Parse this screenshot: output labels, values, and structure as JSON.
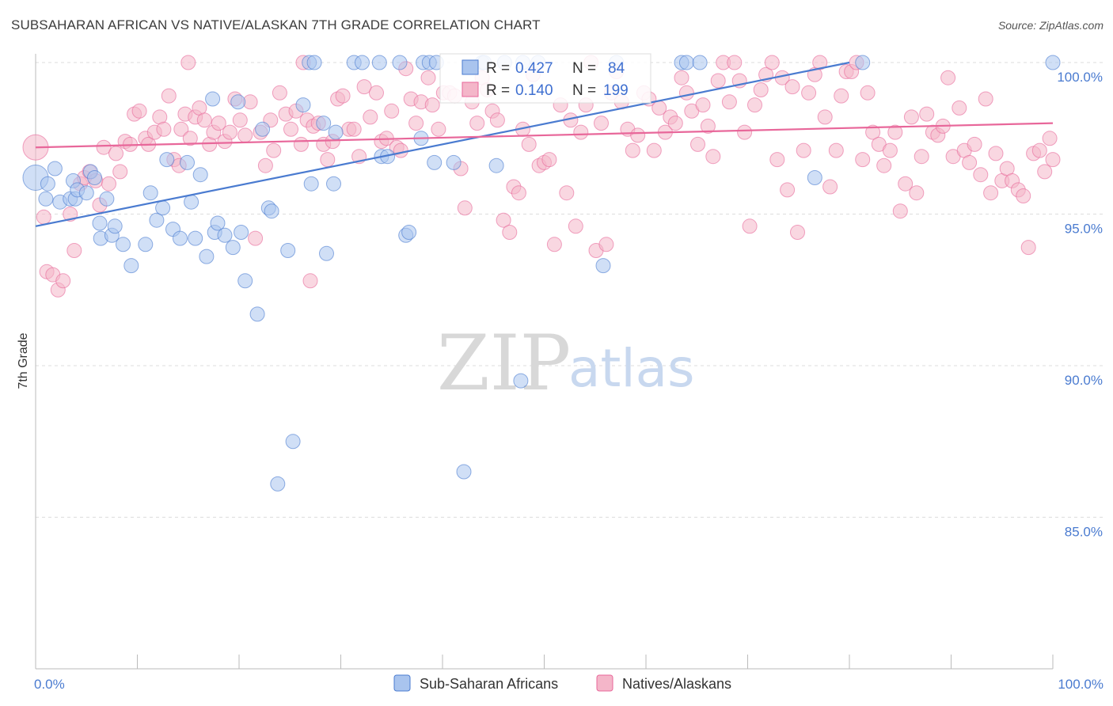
{
  "title": "SUBSAHARAN AFRICAN VS NATIVE/ALASKAN 7TH GRADE CORRELATION CHART",
  "source": "Source: ZipAtlas.com",
  "watermark": {
    "zip": "ZIP",
    "atlas": "atlas"
  },
  "colors": {
    "blue": "#4a7bd0",
    "blue_fill": "#a9c4ee",
    "pink": "#e8679a",
    "pink_fill": "#f4b6c9"
  },
  "chart_data": {
    "type": "scatter",
    "ylabel": "7th Grade",
    "xlim": [
      0,
      100
    ],
    "ylim": [
      80,
      100.8
    ],
    "x_tick_labels": {
      "left": "0.0%",
      "right": "100.0%"
    },
    "y_ticks": [
      {
        "value": 100,
        "label": "100.0%"
      },
      {
        "value": 95,
        "label": "95.0%"
      },
      {
        "value": 90,
        "label": "90.0%"
      },
      {
        "value": 85,
        "label": "85.0%"
      }
    ],
    "grid": true,
    "legend_position": "bottom-center",
    "series": [
      {
        "name": "Sub-Saharan Africans",
        "color": "blue",
        "R_label": "R =",
        "R": "0.427",
        "N_label": "N =",
        "N": "84",
        "trend": [
          [
            0,
            94.6
          ],
          [
            80,
            100.0
          ]
        ],
        "points": [
          [
            0,
            96.2
          ],
          [
            1,
            95.5
          ],
          [
            1.2,
            96
          ],
          [
            1.9,
            96.5
          ],
          [
            2.4,
            95.4
          ],
          [
            3.4,
            95.5
          ],
          [
            3.7,
            96.1
          ],
          [
            3.9,
            95.5
          ],
          [
            4.1,
            95.8
          ],
          [
            5,
            95.7
          ],
          [
            5.4,
            96.4
          ],
          [
            5.8,
            96.2
          ],
          [
            6.3,
            94.7
          ],
          [
            6.4,
            94.2
          ],
          [
            7,
            95.5
          ],
          [
            7.5,
            94.3
          ],
          [
            7.8,
            94.6
          ],
          [
            8.6,
            94.0
          ],
          [
            9.4,
            93.3
          ],
          [
            10.8,
            94.0
          ],
          [
            11.3,
            95.7
          ],
          [
            11.9,
            94.8
          ],
          [
            12.5,
            95.2
          ],
          [
            12.9,
            96.8
          ],
          [
            13.5,
            94.5
          ],
          [
            14.2,
            94.2
          ],
          [
            14.9,
            96.7
          ],
          [
            15.3,
            95.4
          ],
          [
            15.7,
            94.2
          ],
          [
            16.2,
            96.3
          ],
          [
            16.8,
            93.6
          ],
          [
            17.4,
            98.8
          ],
          [
            17.6,
            94.4
          ],
          [
            17.9,
            94.7
          ],
          [
            18.6,
            94.3
          ],
          [
            19.4,
            93.9
          ],
          [
            19.9,
            98.7
          ],
          [
            20.2,
            94.4
          ],
          [
            20.6,
            92.8
          ],
          [
            21.8,
            91.7
          ],
          [
            22.3,
            97.8
          ],
          [
            22.9,
            95.2
          ],
          [
            23.2,
            95.1
          ],
          [
            23.8,
            86.1
          ],
          [
            24.8,
            93.8
          ],
          [
            25.3,
            87.5
          ],
          [
            26.9,
            100
          ],
          [
            27.4,
            100
          ],
          [
            26.3,
            98.6
          ],
          [
            27.1,
            96.0
          ],
          [
            28.3,
            98.0
          ],
          [
            28.6,
            93.7
          ],
          [
            29.3,
            96.0
          ],
          [
            29.5,
            97.7
          ],
          [
            31.3,
            100
          ],
          [
            32.1,
            100
          ],
          [
            33.8,
            100
          ],
          [
            34,
            96.9
          ],
          [
            34.6,
            96.9
          ],
          [
            35.8,
            100
          ],
          [
            36.4,
            94.3
          ],
          [
            36.7,
            94.4
          ],
          [
            37.9,
            97.5
          ],
          [
            38.1,
            100
          ],
          [
            38.7,
            100
          ],
          [
            39.2,
            96.7
          ],
          [
            39.4,
            100
          ],
          [
            42.1,
            86.5
          ],
          [
            41.1,
            96.7
          ],
          [
            43.9,
            100
          ],
          [
            44.1,
            100
          ],
          [
            45.3,
            96.6
          ],
          [
            46.1,
            100
          ],
          [
            47.7,
            89.5
          ],
          [
            47.9,
            100
          ],
          [
            49.4,
            100
          ],
          [
            55.8,
            93.3
          ],
          [
            57.1,
            100
          ],
          [
            63.5,
            100
          ],
          [
            64,
            100
          ],
          [
            65.3,
            100
          ],
          [
            76.6,
            96.2
          ],
          [
            81.3,
            100
          ],
          [
            100,
            100
          ]
        ]
      },
      {
        "name": "Natives/Alaskans",
        "color": "pink",
        "R_label": "R =",
        "R": "0.140",
        "N_label": "N =",
        "N": "199",
        "trend": [
          [
            0,
            97.2
          ],
          [
            100,
            98.0
          ]
        ],
        "points": [
          [
            0,
            97.2
          ],
          [
            0.8,
            94.9
          ],
          [
            1.1,
            93.1
          ],
          [
            1.7,
            93.0
          ],
          [
            2.2,
            92.5
          ],
          [
            2.7,
            92.8
          ],
          [
            3.4,
            95.0
          ],
          [
            3.8,
            93.8
          ],
          [
            4.4,
            96.0
          ],
          [
            4.8,
            96.2
          ],
          [
            5.3,
            96.4
          ],
          [
            5.9,
            96.1
          ],
          [
            6.3,
            95.3
          ],
          [
            6.7,
            97.2
          ],
          [
            7.2,
            96.0
          ],
          [
            7.9,
            97.0
          ],
          [
            8.3,
            96.4
          ],
          [
            8.8,
            97.4
          ],
          [
            9.3,
            97.3
          ],
          [
            9.7,
            98.3
          ],
          [
            10.2,
            98.4
          ],
          [
            10.8,
            97.5
          ],
          [
            11.1,
            97.3
          ],
          [
            11.7,
            97.7
          ],
          [
            12.2,
            98.2
          ],
          [
            12.6,
            97.8
          ],
          [
            13.1,
            98.9
          ],
          [
            13.6,
            96.8
          ],
          [
            14.1,
            96.6
          ],
          [
            14.3,
            97.8
          ],
          [
            14.7,
            98.3
          ],
          [
            15.2,
            97.5
          ],
          [
            15.7,
            98.2
          ],
          [
            16.1,
            98.5
          ],
          [
            16.6,
            98.1
          ],
          [
            17.1,
            97.3
          ],
          [
            17.5,
            97.7
          ],
          [
            18.0,
            98.0
          ],
          [
            18.6,
            97.4
          ],
          [
            19.1,
            97.7
          ],
          [
            19.6,
            98.8
          ],
          [
            20.1,
            98.1
          ],
          [
            20.6,
            97.6
          ],
          [
            21.1,
            98.7
          ],
          [
            21.6,
            94.2
          ],
          [
            22.1,
            97.7
          ],
          [
            22.6,
            96.6
          ],
          [
            23.1,
            98.1
          ],
          [
            23.4,
            97.1
          ],
          [
            24.0,
            99.0
          ],
          [
            24.6,
            98.3
          ],
          [
            25.1,
            97.8
          ],
          [
            25.6,
            98.4
          ],
          [
            26.1,
            97.3
          ],
          [
            26.7,
            98.1
          ],
          [
            27.0,
            92.8
          ],
          [
            27.3,
            97.9
          ],
          [
            27.8,
            98.0
          ],
          [
            28.3,
            97.3
          ],
          [
            28.7,
            96.8
          ],
          [
            29.2,
            97.4
          ],
          [
            29.7,
            98.8
          ],
          [
            30.2,
            98.9
          ],
          [
            30.8,
            97.8
          ],
          [
            31.3,
            97.8
          ],
          [
            31.8,
            96.9
          ],
          [
            32.3,
            99.2
          ],
          [
            32.9,
            98.2
          ],
          [
            33.5,
            99.0
          ],
          [
            34.0,
            97.4
          ],
          [
            34.5,
            97.5
          ],
          [
            35.0,
            98.4
          ],
          [
            35.5,
            97.2
          ],
          [
            35.9,
            97.1
          ],
          [
            36.4,
            99.8
          ],
          [
            36.9,
            98.8
          ],
          [
            37.4,
            98.0
          ],
          [
            37.9,
            98.7
          ],
          [
            38.6,
            99.5
          ],
          [
            39.0,
            98.6
          ],
          [
            39.6,
            97.8
          ],
          [
            40.1,
            99.0
          ],
          [
            40.7,
            99.0
          ],
          [
            41.2,
            98.9
          ],
          [
            41.8,
            96.5
          ],
          [
            42.2,
            95.2
          ],
          [
            42.9,
            98.7
          ],
          [
            43.4,
            98.0
          ],
          [
            43.9,
            99.5
          ],
          [
            44.4,
            99.1
          ],
          [
            44.9,
            98.4
          ],
          [
            45.4,
            98.1
          ],
          [
            46.0,
            94.8
          ],
          [
            46.6,
            94.4
          ],
          [
            47.0,
            95.9
          ],
          [
            47.5,
            95.7
          ],
          [
            47.9,
            97.8
          ],
          [
            48.5,
            97.3
          ],
          [
            48.9,
            99.6
          ],
          [
            49.5,
            96.6
          ],
          [
            50.0,
            96.7
          ],
          [
            50.5,
            96.8
          ],
          [
            51.0,
            94.0
          ],
          [
            51.6,
            98.6
          ],
          [
            52.2,
            95.7
          ],
          [
            52.6,
            98.1
          ],
          [
            53.1,
            94.6
          ],
          [
            53.6,
            97.7
          ],
          [
            54.1,
            98.6
          ],
          [
            54.6,
            100
          ],
          [
            55.1,
            93.8
          ],
          [
            55.6,
            98.0
          ],
          [
            56.1,
            94.0
          ],
          [
            56.6,
            99.0
          ],
          [
            57.1,
            99.7
          ],
          [
            57.6,
            98.7
          ],
          [
            58.2,
            97.8
          ],
          [
            58.7,
            97.1
          ],
          [
            59.2,
            97.6
          ],
          [
            59.8,
            99.0
          ],
          [
            60.3,
            98.8
          ],
          [
            60.8,
            97.1
          ],
          [
            61.3,
            98.5
          ],
          [
            61.9,
            97.7
          ],
          [
            62.4,
            98.2
          ],
          [
            62.9,
            98.0
          ],
          [
            63.5,
            99.5
          ],
          [
            64.0,
            99.0
          ],
          [
            64.5,
            98.4
          ],
          [
            65.1,
            97.3
          ],
          [
            65.6,
            98.6
          ],
          [
            66.1,
            97.9
          ],
          [
            66.6,
            96.9
          ],
          [
            67.1,
            99.4
          ],
          [
            67.6,
            100
          ],
          [
            68.2,
            98.7
          ],
          [
            68.7,
            100
          ],
          [
            69.2,
            99.4
          ],
          [
            69.7,
            97.7
          ],
          [
            70.2,
            94.6
          ],
          [
            70.7,
            98.6
          ],
          [
            71.3,
            99.1
          ],
          [
            71.8,
            99.6
          ],
          [
            72.4,
            100
          ],
          [
            72.9,
            96.8
          ],
          [
            73.4,
            99.5
          ],
          [
            73.9,
            95.8
          ],
          [
            74.4,
            99.2
          ],
          [
            74.9,
            94.4
          ],
          [
            75.5,
            97.1
          ],
          [
            76.0,
            99.0
          ],
          [
            76.6,
            99.6
          ],
          [
            77.1,
            100
          ],
          [
            77.6,
            98.2
          ],
          [
            78.1,
            95.9
          ],
          [
            78.7,
            97.1
          ],
          [
            79.2,
            98.9
          ],
          [
            79.7,
            99.7
          ],
          [
            80.2,
            99.7
          ],
          [
            80.7,
            100
          ],
          [
            81.3,
            96.8
          ],
          [
            81.8,
            99.0
          ],
          [
            82.3,
            97.7
          ],
          [
            82.9,
            97.3
          ],
          [
            83.4,
            96.6
          ],
          [
            84.0,
            97.1
          ],
          [
            84.5,
            97.7
          ],
          [
            85.0,
            95.1
          ],
          [
            85.5,
            96.0
          ],
          [
            86.1,
            98.2
          ],
          [
            86.6,
            95.7
          ],
          [
            87.1,
            96.9
          ],
          [
            87.6,
            98.3
          ],
          [
            88.2,
            97.7
          ],
          [
            88.7,
            97.6
          ],
          [
            89.2,
            97.9
          ],
          [
            89.7,
            99.5
          ],
          [
            90.2,
            96.9
          ],
          [
            90.8,
            98.5
          ],
          [
            91.3,
            97.1
          ],
          [
            91.8,
            96.7
          ],
          [
            92.3,
            97.3
          ],
          [
            92.9,
            96.3
          ],
          [
            93.4,
            98.8
          ],
          [
            93.9,
            95.7
          ],
          [
            94.4,
            97.0
          ],
          [
            95.0,
            96.1
          ],
          [
            95.5,
            96.5
          ],
          [
            96.0,
            96.1
          ],
          [
            96.6,
            95.8
          ],
          [
            97.1,
            95.6
          ],
          [
            97.6,
            93.9
          ],
          [
            98.1,
            97.0
          ],
          [
            98.7,
            97.1
          ],
          [
            99.2,
            96.4
          ],
          [
            99.7,
            97.5
          ],
          [
            100,
            96.8
          ],
          [
            26.3,
            100
          ],
          [
            15.0,
            100
          ]
        ]
      }
    ]
  }
}
